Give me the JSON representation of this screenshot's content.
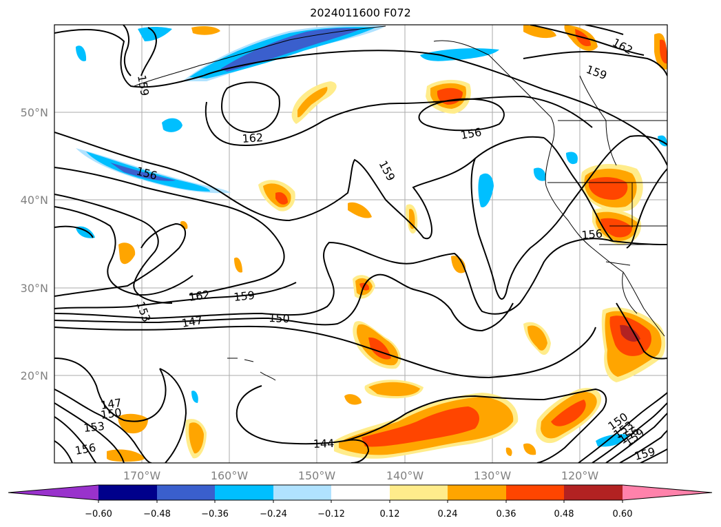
{
  "title": "2024011600 F072",
  "map": {
    "lat_labels": [
      "50°N",
      "40°N",
      "30°N",
      "20°N"
    ],
    "lon_labels": [
      "170°W",
      "160°W",
      "150°W",
      "140°W",
      "130°W",
      "120°W"
    ],
    "contour_labels": [
      "159",
      "162",
      "159",
      "156",
      "162",
      "156",
      "159",
      "156",
      "156",
      "162",
      "159",
      "150",
      "147",
      "153",
      "147",
      "150",
      "153",
      "156",
      "144",
      "150",
      "153",
      "156",
      "159",
      "159"
    ]
  },
  "colorbar": {
    "ticks": [
      "−0.60",
      "−0.48",
      "−0.36",
      "−0.24",
      "−0.12",
      "0.12",
      "0.24",
      "0.36",
      "0.48",
      "0.60"
    ],
    "colors": [
      "#9932cc",
      "#00008b",
      "#3a5fcd",
      "#00bfff",
      "#b0e2ff",
      "#ffffff",
      "#ffec8b",
      "#ffa500",
      "#ff4500",
      "#b22222",
      "#ff82ab"
    ]
  }
}
